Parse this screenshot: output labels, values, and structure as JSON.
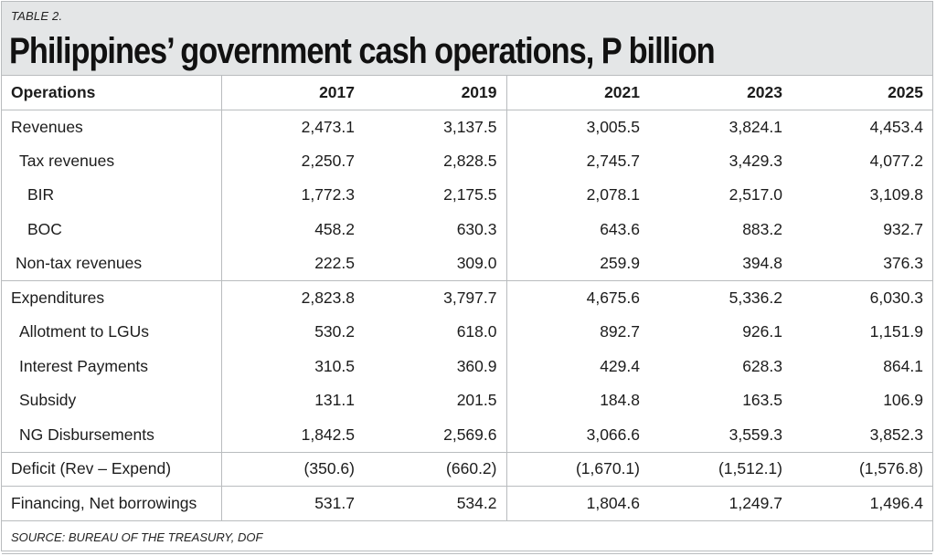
{
  "kicker": "TABLE 2.",
  "title": "Philippines’ government cash operations, P billion",
  "table": {
    "header": [
      "Operations",
      "2017",
      "2019",
      "2021",
      "2023",
      "2025"
    ],
    "rows": [
      {
        "label": "Revenues",
        "indent": 0,
        "values": [
          "2,473.1",
          "3,137.5",
          "3,005.5",
          "3,824.1",
          "4,453.4"
        ]
      },
      {
        "label": "Tax revenues",
        "indent": 1,
        "values": [
          "2,250.7",
          "2,828.5",
          "2,745.7",
          "3,429.3",
          "4,077.2"
        ]
      },
      {
        "label": "BIR",
        "indent": 2,
        "values": [
          "1,772.3",
          "2,175.5",
          "2,078.1",
          "2,517.0",
          "3,109.8"
        ]
      },
      {
        "label": "BOC",
        "indent": 2,
        "values": [
          "458.2",
          "630.3",
          "643.6",
          "883.2",
          "932.7"
        ]
      },
      {
        "label": "Non-tax revenues",
        "indent": 1,
        "values": [
          "222.5",
          "309.0",
          "259.9",
          "394.8",
          "376.3"
        ]
      },
      {
        "label": "Expenditures",
        "indent": 0,
        "values": [
          "2,823.8",
          "3,797.7",
          "4,675.6",
          "5,336.2",
          "6,030.3"
        ]
      },
      {
        "label": "Allotment to LGUs",
        "indent": 1,
        "values": [
          "530.2",
          "618.0",
          "892.7",
          "926.1",
          "1,151.9"
        ]
      },
      {
        "label": "Interest Payments",
        "indent": 1,
        "values": [
          "310.5",
          "360.9",
          "429.4",
          "628.3",
          "864.1"
        ]
      },
      {
        "label": "Subsidy",
        "indent": 1,
        "values": [
          "131.1",
          "201.5",
          "184.8",
          "163.5",
          "106.9"
        ]
      },
      {
        "label": "NG Disbursements",
        "indent": 1,
        "values": [
          "1,842.5",
          "2,569.6",
          "3,066.6",
          "3,559.3",
          "3,852.3"
        ]
      },
      {
        "label": "Deficit (Rev – Expend)",
        "indent": 0,
        "values": [
          "(350.6)",
          "(660.2)",
          "(1,670.1)",
          "(1,512.1)",
          "(1,576.8)"
        ]
      },
      {
        "label": "Financing, Net borrowings",
        "indent": 0,
        "values": [
          "531.7",
          "534.2",
          "1,804.6",
          "1,249.7",
          "1,496.4"
        ]
      }
    ],
    "source": "SOURCE: BUREAU OF THE TREASURY, DOF"
  },
  "colors": {
    "header_band": "#e4e6e7",
    "rule": "#b9bcbe",
    "text": "#1c1c1c"
  }
}
